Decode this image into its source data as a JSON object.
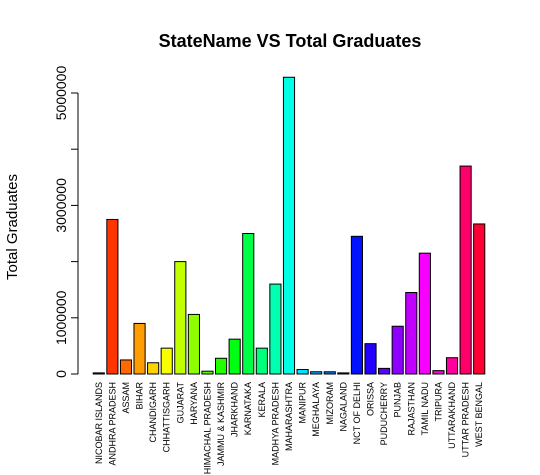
{
  "chart_data": {
    "type": "bar",
    "title": "StateName VS Total Graduates",
    "xlabel": "",
    "ylabel": "Total Graduates",
    "ylim": [
      0,
      5500000
    ],
    "yticks": [
      0,
      1000000,
      3000000,
      5000000
    ],
    "grid": false,
    "legend": "none",
    "categories": [
      "NICOBAR ISLANDS",
      "ANDHRA PRADESH",
      "ASSAM",
      "BIHAR",
      "CHANDIGARH",
      "CHHATTISGARH",
      "GUJARAT",
      "HARYANA",
      "HIMACHAL PRADESH",
      "JAMMU & KASHMIR",
      "JHARKHAND",
      "KARNATAKA",
      "KERALA",
      "MADHYA PRADESH",
      "MAHARASHTRA",
      "MANIPUR",
      "MEGHALAYA",
      "MIZORAM",
      "NAGALAND",
      "NCT OF DELHI",
      "ORISSA",
      "PUDUCHERRY",
      "PUNJAB",
      "RAJASTHAN",
      "TAMIL NADU",
      "TRIPURA",
      "UTTARAKHAND",
      "UTTAR PRADESH",
      "WEST BENGAL"
    ],
    "values": [
      20000,
      2750000,
      250000,
      900000,
      200000,
      460000,
      2000000,
      1060000,
      50000,
      280000,
      620000,
      2500000,
      460000,
      1600000,
      5280000,
      80000,
      40000,
      40000,
      20000,
      2450000,
      540000,
      100000,
      850000,
      1450000,
      2150000,
      60000,
      290000,
      3700000,
      2670000
    ],
    "colors": [
      "#FF0000",
      "#FF3500",
      "#FF6A00",
      "#FF9E00",
      "#FFD300",
      "#F7FF00",
      "#C2FF00",
      "#8DFF00",
      "#59FF00",
      "#24FF00",
      "#00FF12",
      "#00FF47",
      "#00FF7B",
      "#00FFB0",
      "#00FFE5",
      "#00E5FF",
      "#00B0FF",
      "#007BFF",
      "#0047FF",
      "#0012FF",
      "#2400FF",
      "#5900FF",
      "#8D00FF",
      "#C200FF",
      "#F700FF",
      "#FF00D3",
      "#FF009E",
      "#FF006A",
      "#FF0035"
    ]
  }
}
